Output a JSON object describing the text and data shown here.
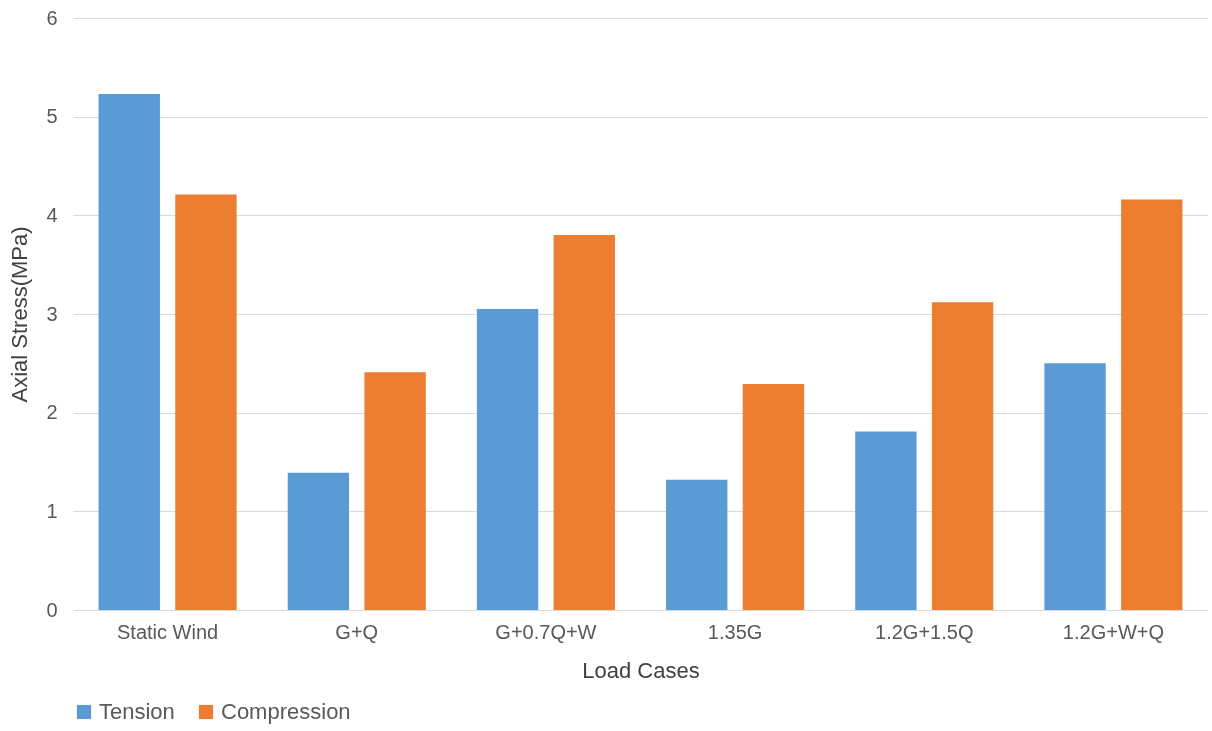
{
  "chart_data": {
    "type": "bar",
    "xlabel": "Load Cases",
    "ylabel": "Axial Stress(MPa)",
    "categories": [
      "Static Wind",
      "G+Q",
      "G+0.7Q+W",
      "1.35G",
      "1.2G+1.5Q",
      "1.2G+W+Q"
    ],
    "series": [
      {
        "name": "Tension",
        "color": "#5b9bd5",
        "values": [
          5.23,
          1.39,
          3.05,
          1.32,
          1.81,
          2.5
        ]
      },
      {
        "name": "Compression",
        "color": "#ed7d31",
        "values": [
          4.21,
          2.41,
          3.8,
          2.29,
          3.12,
          4.16
        ]
      }
    ],
    "ylim": [
      0,
      6
    ],
    "yticks": [
      0,
      1,
      2,
      3,
      4,
      5,
      6
    ],
    "grid": "y",
    "legend": "bottom"
  }
}
